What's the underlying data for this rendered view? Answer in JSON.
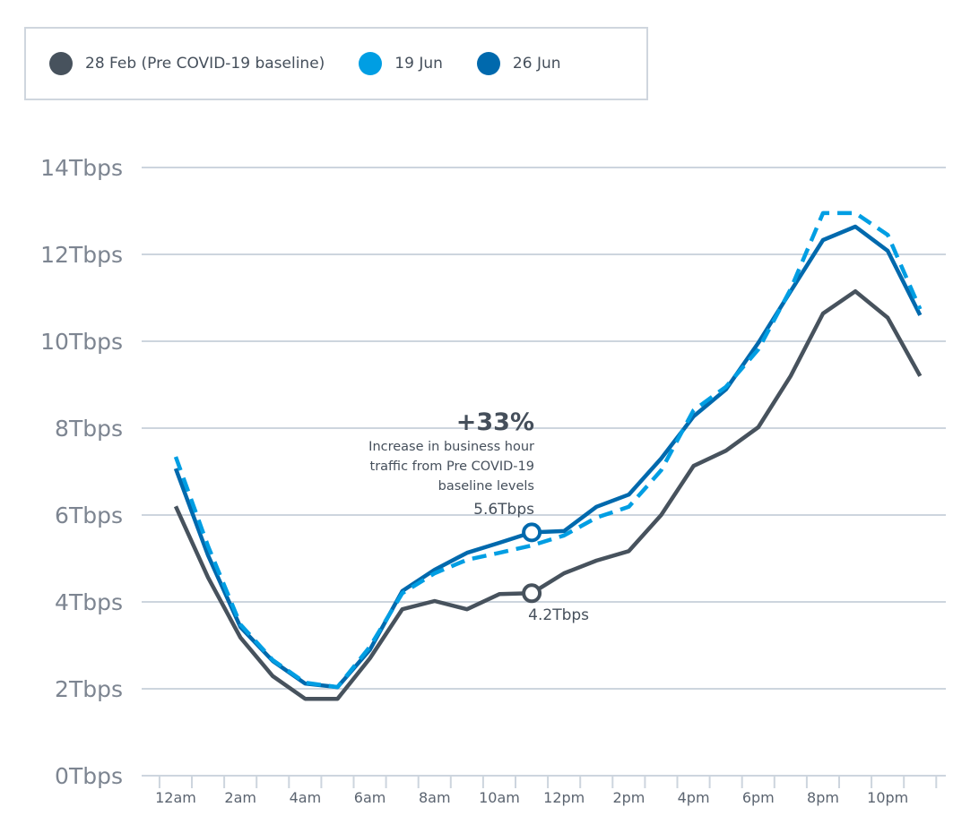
{
  "chart_data": {
    "type": "line",
    "title": "",
    "xlabel": "",
    "ylabel": "",
    "ylim": [
      0,
      14
    ],
    "yunit": "Tbps",
    "yticks": [
      "0Tbps",
      "2Tbps",
      "4Tbps",
      "6Tbps",
      "8Tbps",
      "10Tbps",
      "12Tbps",
      "14Tbps"
    ],
    "ytick_values": [
      0,
      2,
      4,
      6,
      8,
      10,
      12,
      14
    ],
    "x": [
      "12am",
      "1am",
      "2am",
      "3am",
      "4am",
      "5am",
      "6am",
      "7am",
      "8am",
      "9am",
      "10am",
      "11am",
      "12pm",
      "1pm",
      "2pm",
      "3pm",
      "4pm",
      "5pm",
      "6pm",
      "7pm",
      "8pm",
      "9pm",
      "10pm",
      "11pm"
    ],
    "xtick_labels": [
      "12am",
      "2am",
      "4am",
      "6am",
      "8am",
      "10am",
      "12pm",
      "2pm",
      "4pm",
      "6pm",
      "8pm",
      "10pm"
    ],
    "grid": true,
    "legend_placement": "top-left",
    "series": [
      {
        "name": "28 Feb (Pre COVID-19 baseline)",
        "color": "#47525d",
        "style": "solid",
        "values": [
          6.2,
          4.56,
          3.18,
          2.29,
          1.77,
          1.77,
          2.7,
          3.83,
          4.02,
          3.83,
          4.18,
          4.2,
          4.66,
          4.95,
          5.17,
          6.0,
          7.13,
          7.48,
          8.02,
          9.2,
          10.64,
          11.15,
          10.54,
          9.2
        ]
      },
      {
        "name": "19 Jun",
        "color": "#009ee3",
        "style": "dashed",
        "values": [
          7.34,
          5.28,
          3.48,
          2.66,
          2.14,
          2.04,
          2.97,
          4.2,
          4.66,
          4.97,
          5.13,
          5.3,
          5.53,
          5.94,
          6.19,
          7.03,
          8.41,
          8.95,
          9.81,
          11.2,
          12.95,
          12.95,
          12.45,
          10.74
        ]
      },
      {
        "name": "26 Jun",
        "color": "#0069ad",
        "style": "solid",
        "values": [
          7.07,
          5.07,
          3.42,
          2.64,
          2.12,
          2.04,
          2.9,
          4.25,
          4.74,
          5.13,
          5.36,
          5.6,
          5.63,
          6.19,
          6.47,
          7.3,
          8.27,
          8.89,
          9.96,
          11.15,
          12.33,
          12.64,
          12.08,
          10.6
        ]
      }
    ],
    "annotations": {
      "headline": "+33%",
      "description": [
        "Increase in business hour",
        "traffic from Pre COVID-19",
        "baseline levels"
      ],
      "marker_hour": "11am",
      "high_label": "5.6Tbps",
      "low_label": "4.2Tbps"
    }
  }
}
